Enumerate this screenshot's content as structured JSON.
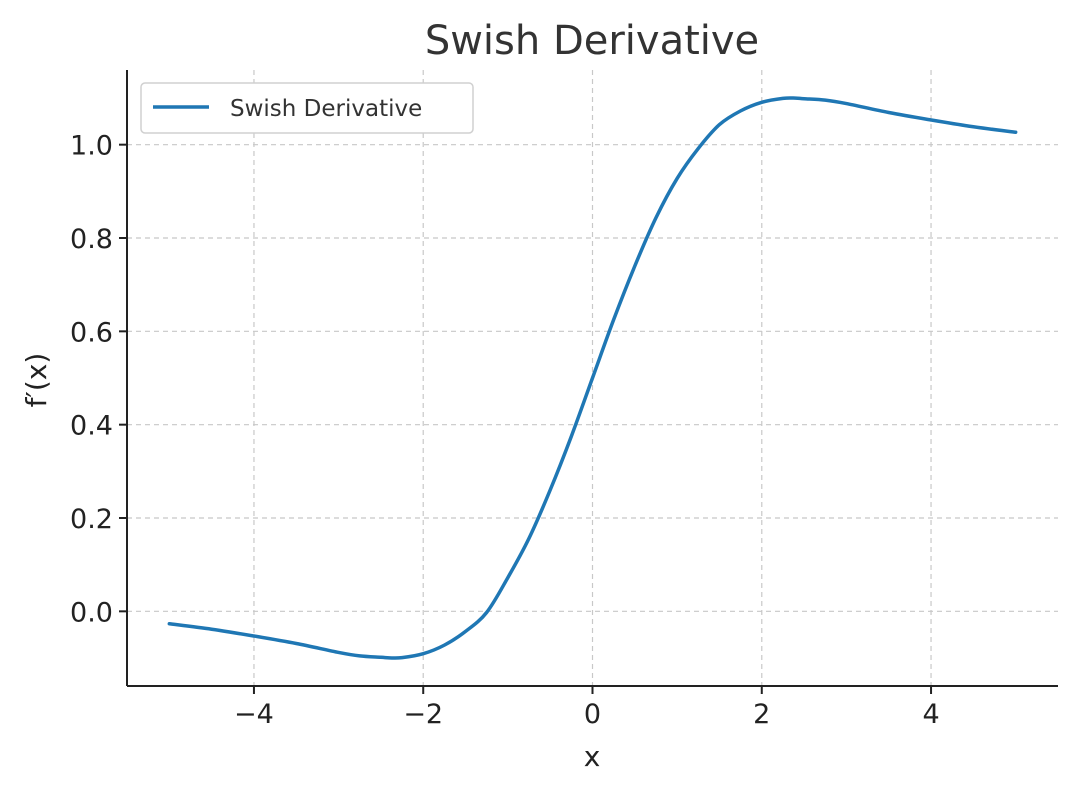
{
  "chart_data": {
    "type": "line",
    "title": "Swish Derivative",
    "xlabel": "x",
    "ylabel": "f′(x)",
    "xlim": [
      -5.5,
      5.5
    ],
    "ylim": [
      -0.16,
      1.16
    ],
    "xticks": [
      -4,
      -2,
      0,
      2,
      4
    ],
    "xtick_labels": [
      "−4",
      "−2",
      "0",
      "2",
      "4"
    ],
    "yticks": [
      0.0,
      0.2,
      0.4,
      0.6,
      0.8,
      1.0
    ],
    "ytick_labels": [
      "0.0",
      "0.2",
      "0.4",
      "0.6",
      "0.8",
      "1.0"
    ],
    "grid": true,
    "legend_position": "upper-left",
    "series": [
      {
        "name": "Swish Derivative",
        "color": "#1f77b4",
        "x": [
          -5.0,
          -4.5,
          -4.0,
          -3.5,
          -3.0,
          -2.75,
          -2.5,
          -2.4,
          -2.25,
          -2.0,
          -1.75,
          -1.5,
          -1.25,
          -1.0,
          -0.75,
          -0.5,
          -0.25,
          0.0,
          0.25,
          0.5,
          0.75,
          1.0,
          1.25,
          1.5,
          1.75,
          2.0,
          2.25,
          2.4,
          2.5,
          2.75,
          3.0,
          3.5,
          4.0,
          4.5,
          5.0
        ],
        "y": [
          -0.0266,
          -0.0383,
          -0.0529,
          -0.0689,
          -0.0881,
          -0.0955,
          -0.0985,
          -0.0998,
          -0.0993,
          -0.0908,
          -0.0724,
          -0.043,
          -0.0022,
          0.0723,
          0.1566,
          0.26,
          0.375,
          0.5,
          0.625,
          0.74,
          0.8434,
          0.9277,
          0.992,
          1.043,
          1.0724,
          1.0908,
          1.0993,
          1.0998,
          1.0985,
          1.0955,
          1.0881,
          1.0689,
          1.0529,
          1.0383,
          1.0266
        ]
      }
    ]
  }
}
